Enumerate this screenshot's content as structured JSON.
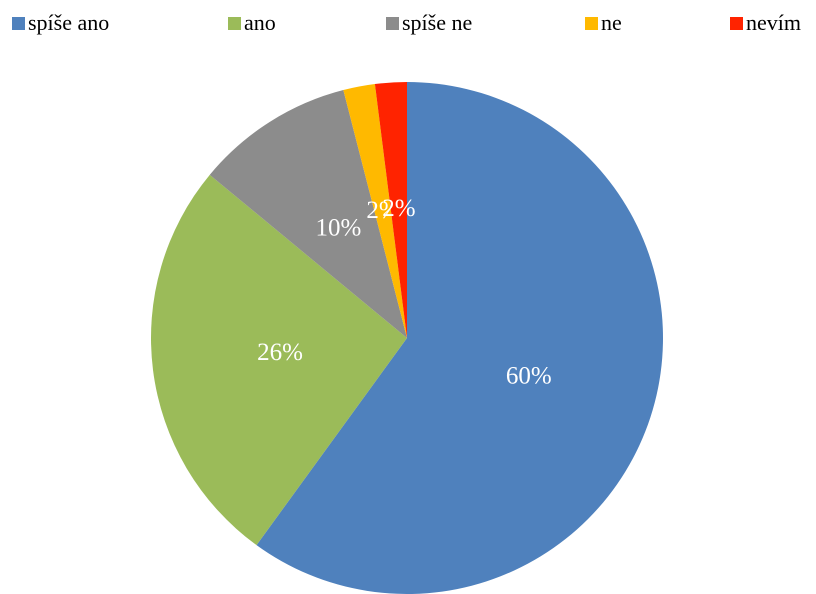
{
  "chart_data": {
    "type": "pie",
    "categories": [
      "spíše ano",
      "ano",
      "spíše ne",
      "ne",
      "nevím"
    ],
    "values": [
      60,
      26,
      10,
      2,
      2
    ],
    "value_labels": [
      "60%",
      "26%",
      "10%",
      "2%",
      "2%"
    ],
    "colors": [
      "#4f81bd",
      "#9bbb59",
      "#8c8c8c",
      "#ffb900",
      "#ff2300"
    ],
    "legend": "top"
  }
}
